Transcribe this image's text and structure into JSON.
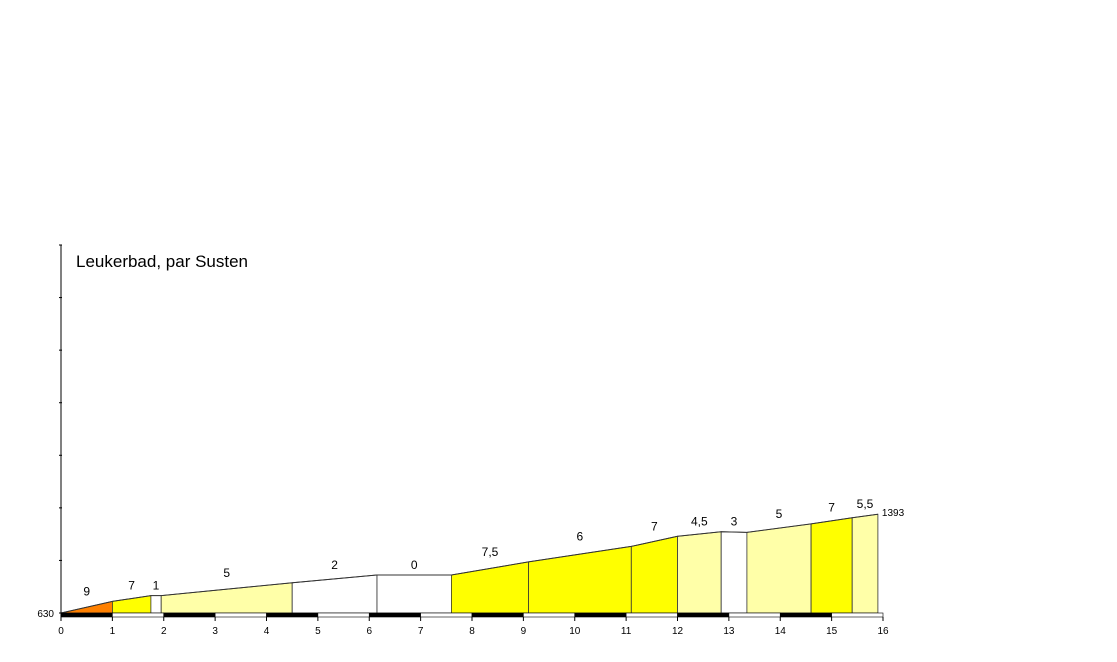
{
  "chart_data": {
    "type": "area",
    "title": "Leukerbad, par Susten",
    "xlabel": "",
    "ylabel": "",
    "xlim": [
      0,
      16
    ],
    "x_ticks": [
      "0",
      "1",
      "2",
      "3",
      "4",
      "5",
      "6",
      "7",
      "8",
      "9",
      "10",
      "11",
      "12",
      "13",
      "14",
      "15",
      "16"
    ],
    "start_altitude_label": "630",
    "end_altitude_label": "1393",
    "ylim": [
      630,
      1580
    ],
    "profile": [
      {
        "x": 0,
        "y": 630
      },
      {
        "x": 1,
        "y": 660
      },
      {
        "x": 1.75,
        "y": 675
      },
      {
        "x": 1.95,
        "y": 675
      },
      {
        "x": 4.5,
        "y": 708
      },
      {
        "x": 6.15,
        "y": 728
      },
      {
        "x": 7.6,
        "y": 728
      },
      {
        "x": 9.1,
        "y": 762
      },
      {
        "x": 11.1,
        "y": 802
      },
      {
        "x": 12.0,
        "y": 828
      },
      {
        "x": 12.85,
        "y": 840
      },
      {
        "x": 13.35,
        "y": 838
      },
      {
        "x": 14.6,
        "y": 860
      },
      {
        "x": 15.4,
        "y": 876
      },
      {
        "x": 15.9,
        "y": 885
      }
    ],
    "segments": [
      {
        "from": 0,
        "to": 1,
        "gradient": "9",
        "color": "#ff8000"
      },
      {
        "from": 1,
        "to": 1.75,
        "gradient": "7",
        "color": "#ffff00"
      },
      {
        "from": 1.75,
        "to": 1.95,
        "gradient": "1",
        "color": "#ffffff"
      },
      {
        "from": 1.95,
        "to": 4.5,
        "gradient": "5",
        "color": "#ffffa8"
      },
      {
        "from": 4.5,
        "to": 6.15,
        "gradient": "2",
        "color": "#ffffff"
      },
      {
        "from": 6.15,
        "to": 7.6,
        "gradient": "0",
        "color": "#ffffff"
      },
      {
        "from": 7.6,
        "to": 9.1,
        "gradient": "7,5",
        "color": "#ffff00"
      },
      {
        "from": 9.1,
        "to": 11.1,
        "gradient": "6",
        "color": "#ffff00"
      },
      {
        "from": 11.1,
        "to": 12.0,
        "gradient": "7",
        "color": "#ffff00"
      },
      {
        "from": 12.0,
        "to": 12.85,
        "gradient": "4,5",
        "color": "#ffffa8"
      },
      {
        "from": 12.85,
        "to": 13.35,
        "gradient": "3",
        "color": "#ffffff"
      },
      {
        "from": 13.35,
        "to": 14.6,
        "gradient": "5",
        "color": "#ffffa8"
      },
      {
        "from": 14.6,
        "to": 15.4,
        "gradient": "7",
        "color": "#ffff00"
      },
      {
        "from": 15.4,
        "to": 15.9,
        "gradient": "5,5",
        "color": "#ffffa8"
      }
    ],
    "grid": false,
    "colors": {
      "axis": "#000000",
      "outline": "#333333",
      "scale_dark": "#000000",
      "scale_light": "#ffffff"
    }
  }
}
